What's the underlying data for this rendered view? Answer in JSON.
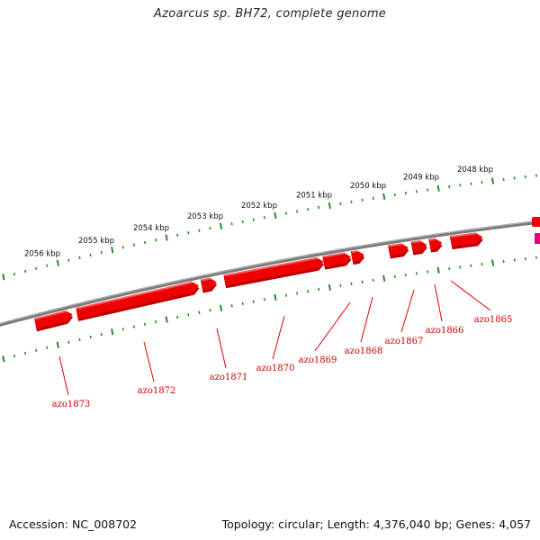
{
  "title": "Azoarcus sp. BH72, complete genome",
  "footer": {
    "accession": "Accession: NC_008702",
    "summary": "Topology: circular; Length: 4,376,040 bp; Genes: 4,057"
  },
  "colors": {
    "gene": "#ee0000",
    "gene_shadow": "#b80000",
    "gene_highlight": "#ff7a7a",
    "backbone": "#7a7a7a",
    "ticks": "#2a8a2a",
    "label": "#cc0000",
    "leader": "#dd0000",
    "partial_gene": "#e8007a"
  },
  "ruler": {
    "kbp_labels": [
      "2048 kbp",
      "2049 kbp",
      "2050 kbp",
      "2051 kbp",
      "2052 kbp",
      "2053 kbp",
      "2054 kbp",
      "2055 kbp",
      "2056 kbp"
    ]
  },
  "genes": [
    {
      "name": "azo1865"
    },
    {
      "name": "azo1866"
    },
    {
      "name": "azo1867"
    },
    {
      "name": "azo1868"
    },
    {
      "name": "azo1869"
    },
    {
      "name": "azo1870"
    },
    {
      "name": "azo1871"
    },
    {
      "name": "azo1872"
    },
    {
      "name": "azo1873"
    }
  ]
}
